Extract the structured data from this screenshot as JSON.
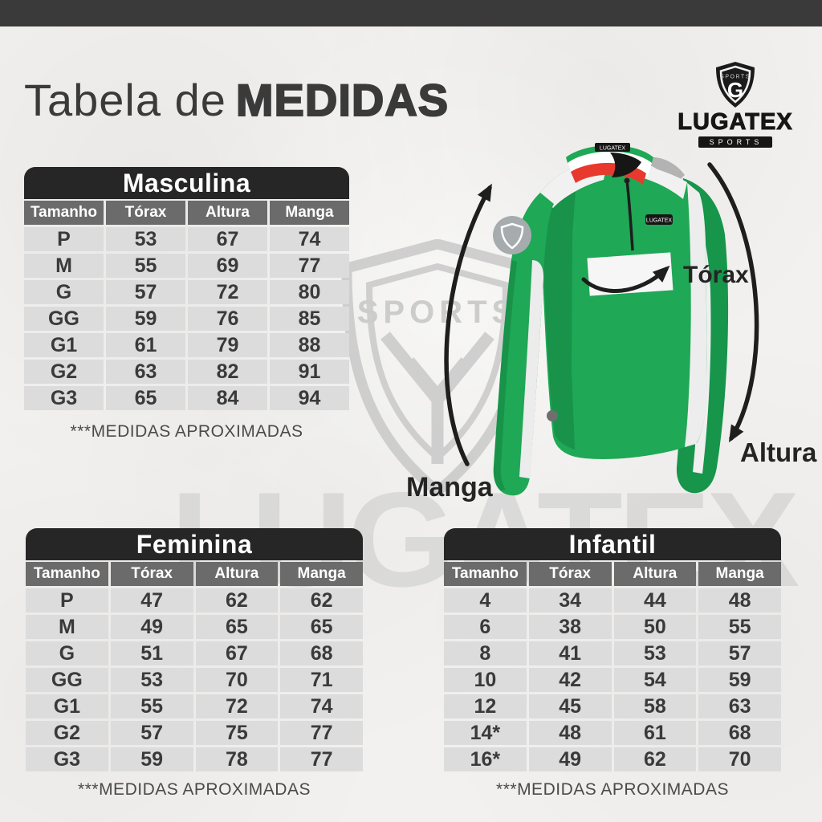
{
  "header": {
    "title_light": "Tabela de",
    "title_bold": "MEDIDAS"
  },
  "logo": {
    "name": "LUGATEX",
    "tagline": "SPORTS",
    "monogram": "G",
    "shield_band": "SPORTS"
  },
  "watermark": {
    "text": "LUGATEX",
    "shield_text": "SPORTS"
  },
  "diagram": {
    "manga_label": "Manga",
    "torax_label": "Tórax",
    "altura_label": "Altura",
    "shirt_patch": "LUGATEX"
  },
  "tables": [
    {
      "title": "Masculina",
      "columns": [
        "Tamanho",
        "Tórax",
        "Altura",
        "Manga"
      ],
      "rows": [
        [
          "P",
          "53",
          "67",
          "74"
        ],
        [
          "M",
          "55",
          "69",
          "77"
        ],
        [
          "G",
          "57",
          "72",
          "80"
        ],
        [
          "GG",
          "59",
          "76",
          "85"
        ],
        [
          "G1",
          "61",
          "79",
          "88"
        ],
        [
          "G2",
          "63",
          "82",
          "91"
        ],
        [
          "G3",
          "65",
          "84",
          "94"
        ]
      ],
      "note": "***MEDIDAS APROXIMADAS"
    },
    {
      "title": "Feminina",
      "columns": [
        "Tamanho",
        "Tórax",
        "Altura",
        "Manga"
      ],
      "rows": [
        [
          "P",
          "47",
          "62",
          "62"
        ],
        [
          "M",
          "49",
          "65",
          "65"
        ],
        [
          "G",
          "51",
          "67",
          "68"
        ],
        [
          "GG",
          "53",
          "70",
          "71"
        ],
        [
          "G1",
          "55",
          "72",
          "74"
        ],
        [
          "G2",
          "57",
          "75",
          "77"
        ],
        [
          "G3",
          "59",
          "78",
          "77"
        ]
      ],
      "note": "***MEDIDAS APROXIMADAS"
    },
    {
      "title": "Infantil",
      "columns": [
        "Tamanho",
        "Tórax",
        "Altura",
        "Manga"
      ],
      "rows": [
        [
          "4",
          "34",
          "44",
          "48"
        ],
        [
          "6",
          "38",
          "50",
          "55"
        ],
        [
          "8",
          "41",
          "53",
          "57"
        ],
        [
          "10",
          "42",
          "54",
          "59"
        ],
        [
          "12",
          "45",
          "58",
          "63"
        ],
        [
          "14*",
          "48",
          "61",
          "68"
        ],
        [
          "16*",
          "49",
          "62",
          "70"
        ]
      ],
      "note": "***MEDIDAS APROXIMADAS"
    }
  ],
  "colors": {
    "top_bar": "#3a3a3a",
    "table_title_bg": "#262626",
    "table_header_bg": "#6b6b6b",
    "cell_bg": "#dcdcdc",
    "shirt_green": "#1fa855",
    "trim_red": "#e8392e",
    "watermark_gray": "#c9c9c9"
  }
}
